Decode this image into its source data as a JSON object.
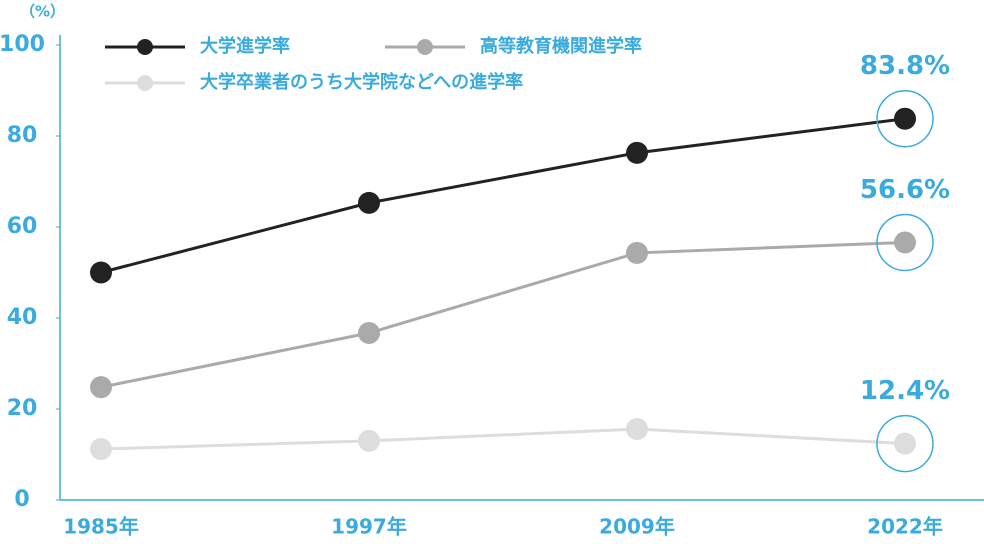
{
  "chart_data": {
    "type": "line",
    "y_unit_label": "（%）",
    "categories": [
      "1985年",
      "1997年",
      "2009年",
      "2022年"
    ],
    "series": [
      {
        "name": "大学進学率",
        "color": "#222222",
        "values": [
          50,
          65.3,
          76.3,
          83.8
        ],
        "value_labels": [
          null,
          null,
          null,
          "83.8%"
        ]
      },
      {
        "name": "高等教育機関進学率",
        "color": "#aaaaaa",
        "values": [
          24.8,
          36.7,
          54.3,
          56.6
        ],
        "value_labels": [
          null,
          null,
          null,
          "56.6%"
        ]
      },
      {
        "name": "大学卒業者のうち大学院などへの進学率",
        "color": "#dddddd",
        "values": [
          11.2,
          13.0,
          15.6,
          12.4
        ],
        "value_labels": [
          null,
          null,
          null,
          "12.4%"
        ]
      }
    ],
    "ylim": [
      0,
      100
    ],
    "yticks": [
      0,
      20,
      40,
      60,
      80,
      100
    ],
    "grid": false,
    "accent_color": "#3aabdc"
  }
}
